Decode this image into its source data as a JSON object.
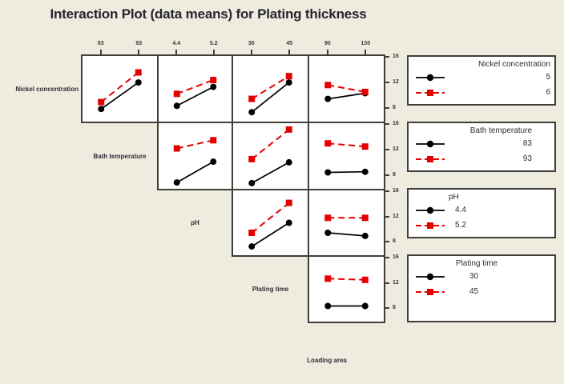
{
  "chart_data": {
    "type": "line",
    "subtype": "interaction-plot-matrix",
    "title": "Interaction Plot (data means) for Plating thickness",
    "response": "Plating thickness",
    "ylim": [
      5.8,
      16.2
    ],
    "yticks": [
      8,
      12,
      16
    ],
    "grid": false,
    "legend_position": "right",
    "colors": {
      "low": "#000000",
      "high": "#e30000"
    },
    "series_styles": [
      {
        "role": "low",
        "color": "#000000",
        "marker": "circle",
        "line": "solid"
      },
      {
        "role": "high",
        "color": "#e30000",
        "marker": "square",
        "line": "dashed"
      }
    ],
    "factors": [
      {
        "name": "Nickel concentration",
        "levels": [
          "5",
          "6"
        ]
      },
      {
        "name": "Bath temperature",
        "levels": [
          "83",
          "93"
        ]
      },
      {
        "name": "pH",
        "levels": [
          "4.4",
          "5.2"
        ]
      },
      {
        "name": "Plating time",
        "levels": [
          "30",
          "45"
        ]
      },
      {
        "name": "Loading area",
        "levels": [
          "90",
          "130"
        ]
      }
    ],
    "panels": [
      {
        "row": 0,
        "col": 1,
        "row_factor": "Nickel concentration",
        "col_factor": "Bath temperature",
        "x_levels": [
          "83",
          "93"
        ],
        "series_low": [
          7.8,
          12.0
        ],
        "series_high": [
          8.9,
          13.6
        ]
      },
      {
        "row": 0,
        "col": 2,
        "row_factor": "Nickel concentration",
        "col_factor": "pH",
        "x_levels": [
          "4.4",
          "5.2"
        ],
        "series_low": [
          8.3,
          11.3
        ],
        "series_high": [
          10.2,
          12.4
        ]
      },
      {
        "row": 0,
        "col": 3,
        "row_factor": "Nickel concentration",
        "col_factor": "Plating time",
        "x_levels": [
          "30",
          "45"
        ],
        "series_low": [
          7.3,
          12.0
        ],
        "series_high": [
          9.4,
          13.0
        ]
      },
      {
        "row": 0,
        "col": 4,
        "row_factor": "Nickel concentration",
        "col_factor": "Loading area",
        "x_levels": [
          "90",
          "130"
        ],
        "series_low": [
          9.4,
          10.3
        ],
        "series_high": [
          11.6,
          10.5
        ]
      },
      {
        "row": 1,
        "col": 2,
        "row_factor": "Bath temperature",
        "col_factor": "pH",
        "x_levels": [
          "4.4",
          "5.2"
        ],
        "series_low": [
          6.8,
          10.1
        ],
        "series_high": [
          12.2,
          13.5
        ]
      },
      {
        "row": 1,
        "col": 3,
        "row_factor": "Bath temperature",
        "col_factor": "Plating time",
        "x_levels": [
          "30",
          "45"
        ],
        "series_low": [
          6.7,
          10.0
        ],
        "series_high": [
          10.5,
          15.2
        ]
      },
      {
        "row": 1,
        "col": 4,
        "row_factor": "Bath temperature",
        "col_factor": "Loading area",
        "x_levels": [
          "90",
          "130"
        ],
        "series_low": [
          8.4,
          8.5
        ],
        "series_high": [
          13.0,
          12.5
        ]
      },
      {
        "row": 2,
        "col": 3,
        "row_factor": "pH",
        "col_factor": "Plating time",
        "x_levels": [
          "30",
          "45"
        ],
        "series_low": [
          7.2,
          11.0
        ],
        "series_high": [
          9.4,
          14.2
        ]
      },
      {
        "row": 2,
        "col": 4,
        "row_factor": "pH",
        "col_factor": "Loading area",
        "x_levels": [
          "90",
          "130"
        ],
        "series_low": [
          9.4,
          8.9
        ],
        "series_high": [
          11.8,
          11.8
        ]
      },
      {
        "row": 3,
        "col": 4,
        "row_factor": "Plating time",
        "col_factor": "Loading area",
        "x_levels": [
          "90",
          "130"
        ],
        "series_low": [
          8.3,
          8.3
        ],
        "series_high": [
          12.7,
          12.5
        ]
      }
    ]
  }
}
